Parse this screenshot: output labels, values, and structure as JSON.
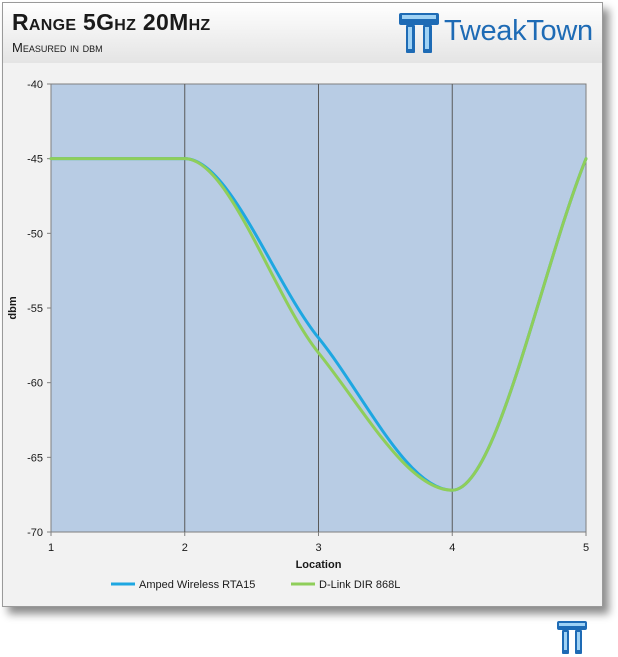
{
  "header": {
    "title": "Range 5Ghz 20Mhz",
    "subtitle": "Measured in dbm",
    "brand": "TweakTown"
  },
  "colors": {
    "plot_bg": "#b8cce4",
    "series_1": "#1ea7e1",
    "series_2": "#8fce5a",
    "brand": "#1e6bb5"
  },
  "chart_data": {
    "type": "line",
    "xlabel": "Location",
    "ylabel": "dbm",
    "x": [
      1,
      2,
      3,
      4,
      5
    ],
    "xticks": [
      "1",
      "2",
      "3",
      "4",
      "5"
    ],
    "yticks": [
      "-40",
      "-45",
      "-50",
      "-55",
      "-60",
      "-65",
      "-70"
    ],
    "ylim": [
      -70,
      -40
    ],
    "xlim": [
      1,
      5
    ],
    "grid": "vertical",
    "legend_position": "bottom",
    "smooth": true,
    "series": [
      {
        "name": "Amped Wireless RTA15",
        "values": [
          -45,
          -45,
          -57,
          -67.2,
          -45
        ]
      },
      {
        "name": "D-Link DIR 868L",
        "values": [
          -45,
          -45,
          -58,
          -67.2,
          -45
        ]
      }
    ]
  }
}
